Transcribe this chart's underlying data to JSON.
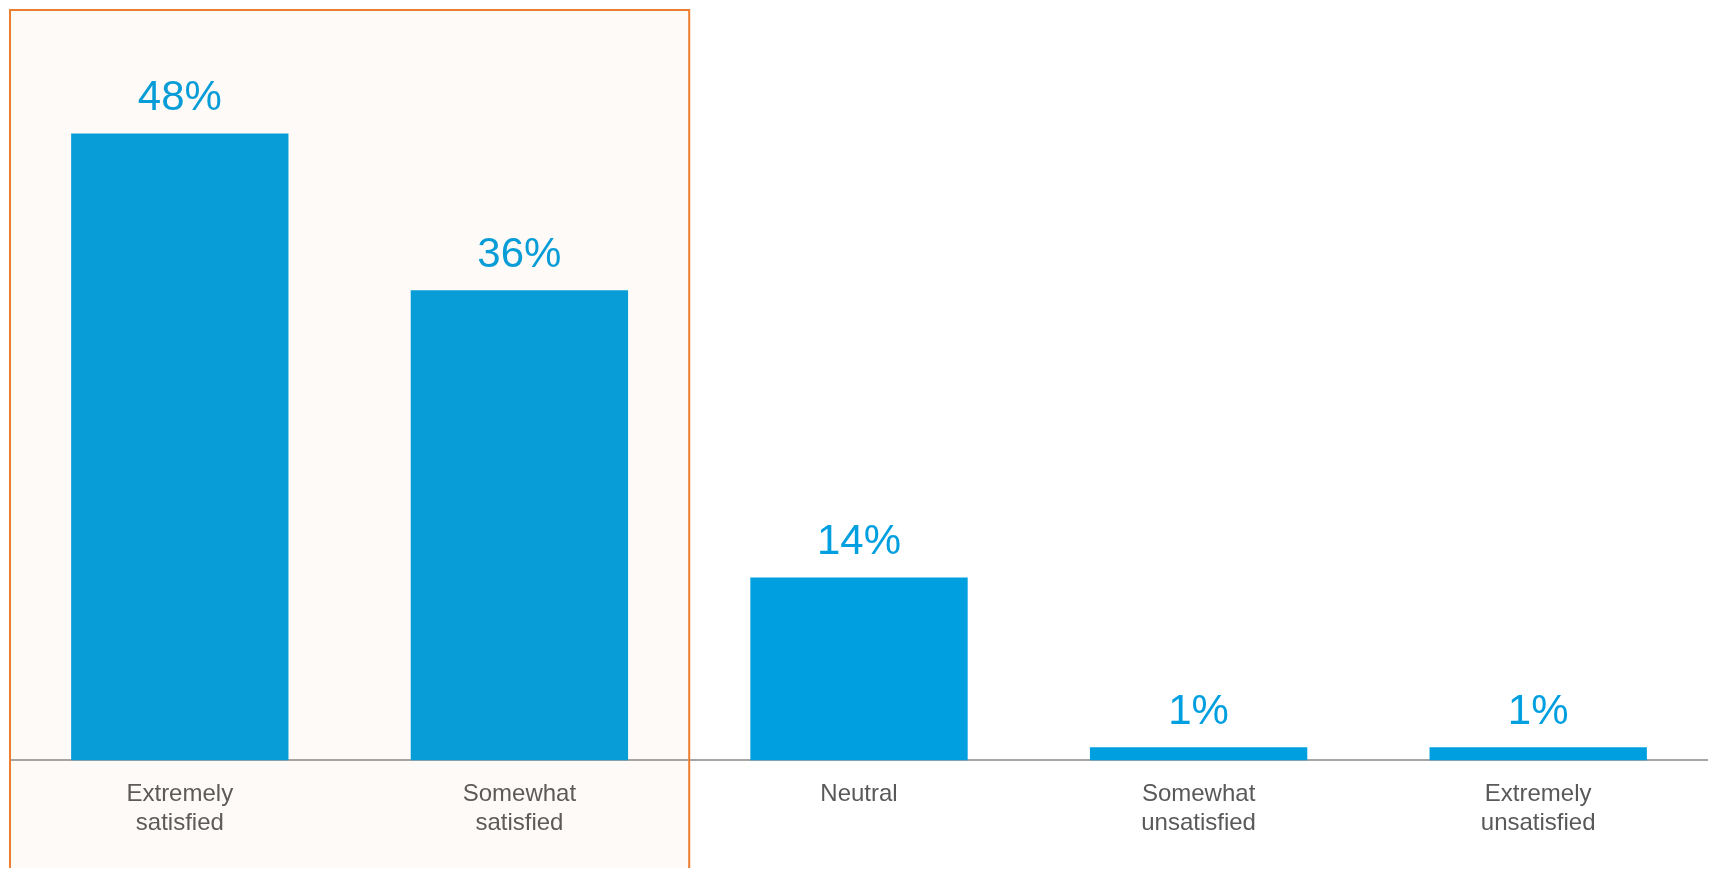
{
  "chart_data": {
    "type": "bar",
    "categories": [
      "Extremely satisfied",
      "Somewhat satisfied",
      "Neutral",
      "Somewhat unsatisfied",
      "Extremely unsatisfied"
    ],
    "values": [
      48,
      36,
      14,
      1,
      1
    ],
    "color": "#009fdf",
    "value_labels": [
      "48%",
      "36%",
      "14%",
      "1%",
      "1%"
    ],
    "bands": [
      {
        "axis": "x",
        "from": "Extremely satisfied",
        "to": "Somewhat satisfied",
        "color": "#ed7d31"
      }
    ],
    "grid": false,
    "legend": false
  }
}
